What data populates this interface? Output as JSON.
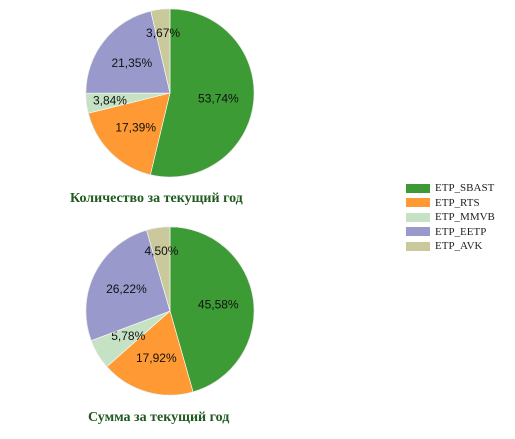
{
  "legend": {
    "items": [
      {
        "label": "ETP_SBAST",
        "color": "#3c9b35"
      },
      {
        "label": "ETP_RTS",
        "color": "#ff9933"
      },
      {
        "label": "ETP_MMVB",
        "color": "#c5e3c4"
      },
      {
        "label": "ETP_EETP",
        "color": "#9999cc"
      },
      {
        "label": "ETP_AVK",
        "color": "#c9c99b"
      }
    ]
  },
  "chart_data": [
    {
      "type": "pie",
      "title": "Количество за текущий год",
      "categories": [
        "ETP_SBAST",
        "ETP_RTS",
        "ETP_MMVB",
        "ETP_EETP",
        "ETP_AVK"
      ],
      "values": [
        53.74,
        17.39,
        3.84,
        21.35,
        3.67
      ],
      "labels": [
        "53,74%",
        "17,39%",
        "3,84%",
        "21,35%",
        "3,67%"
      ],
      "legend_position": "right"
    },
    {
      "type": "pie",
      "title": "Сумма за текущий год",
      "categories": [
        "ETP_SBAST",
        "ETP_RTS",
        "ETP_MMVB",
        "ETP_EETP",
        "ETP_AVK"
      ],
      "values": [
        45.58,
        17.92,
        5.78,
        26.22,
        4.5
      ],
      "labels": [
        "45,58%",
        "17,92%",
        "5,78%",
        "26,22%",
        "4,50%"
      ],
      "legend_position": "right"
    }
  ]
}
